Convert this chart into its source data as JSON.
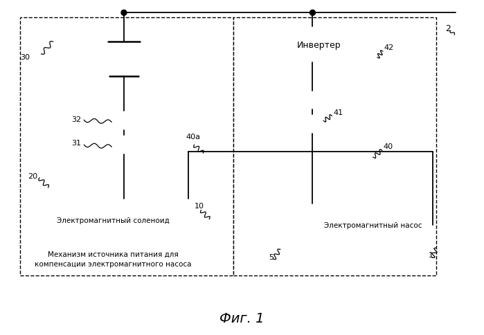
{
  "title": "Фиг. 1",
  "bg_color": "#ffffff",
  "inverter_text": "Инвертер",
  "solenoid_text": "Электромагнитный соленоид",
  "pump_text": "Электромагнитный насос",
  "mechanism_text1": "Механизм источника питания для",
  "mechanism_text2": "компенсации электромагнитного насоса"
}
